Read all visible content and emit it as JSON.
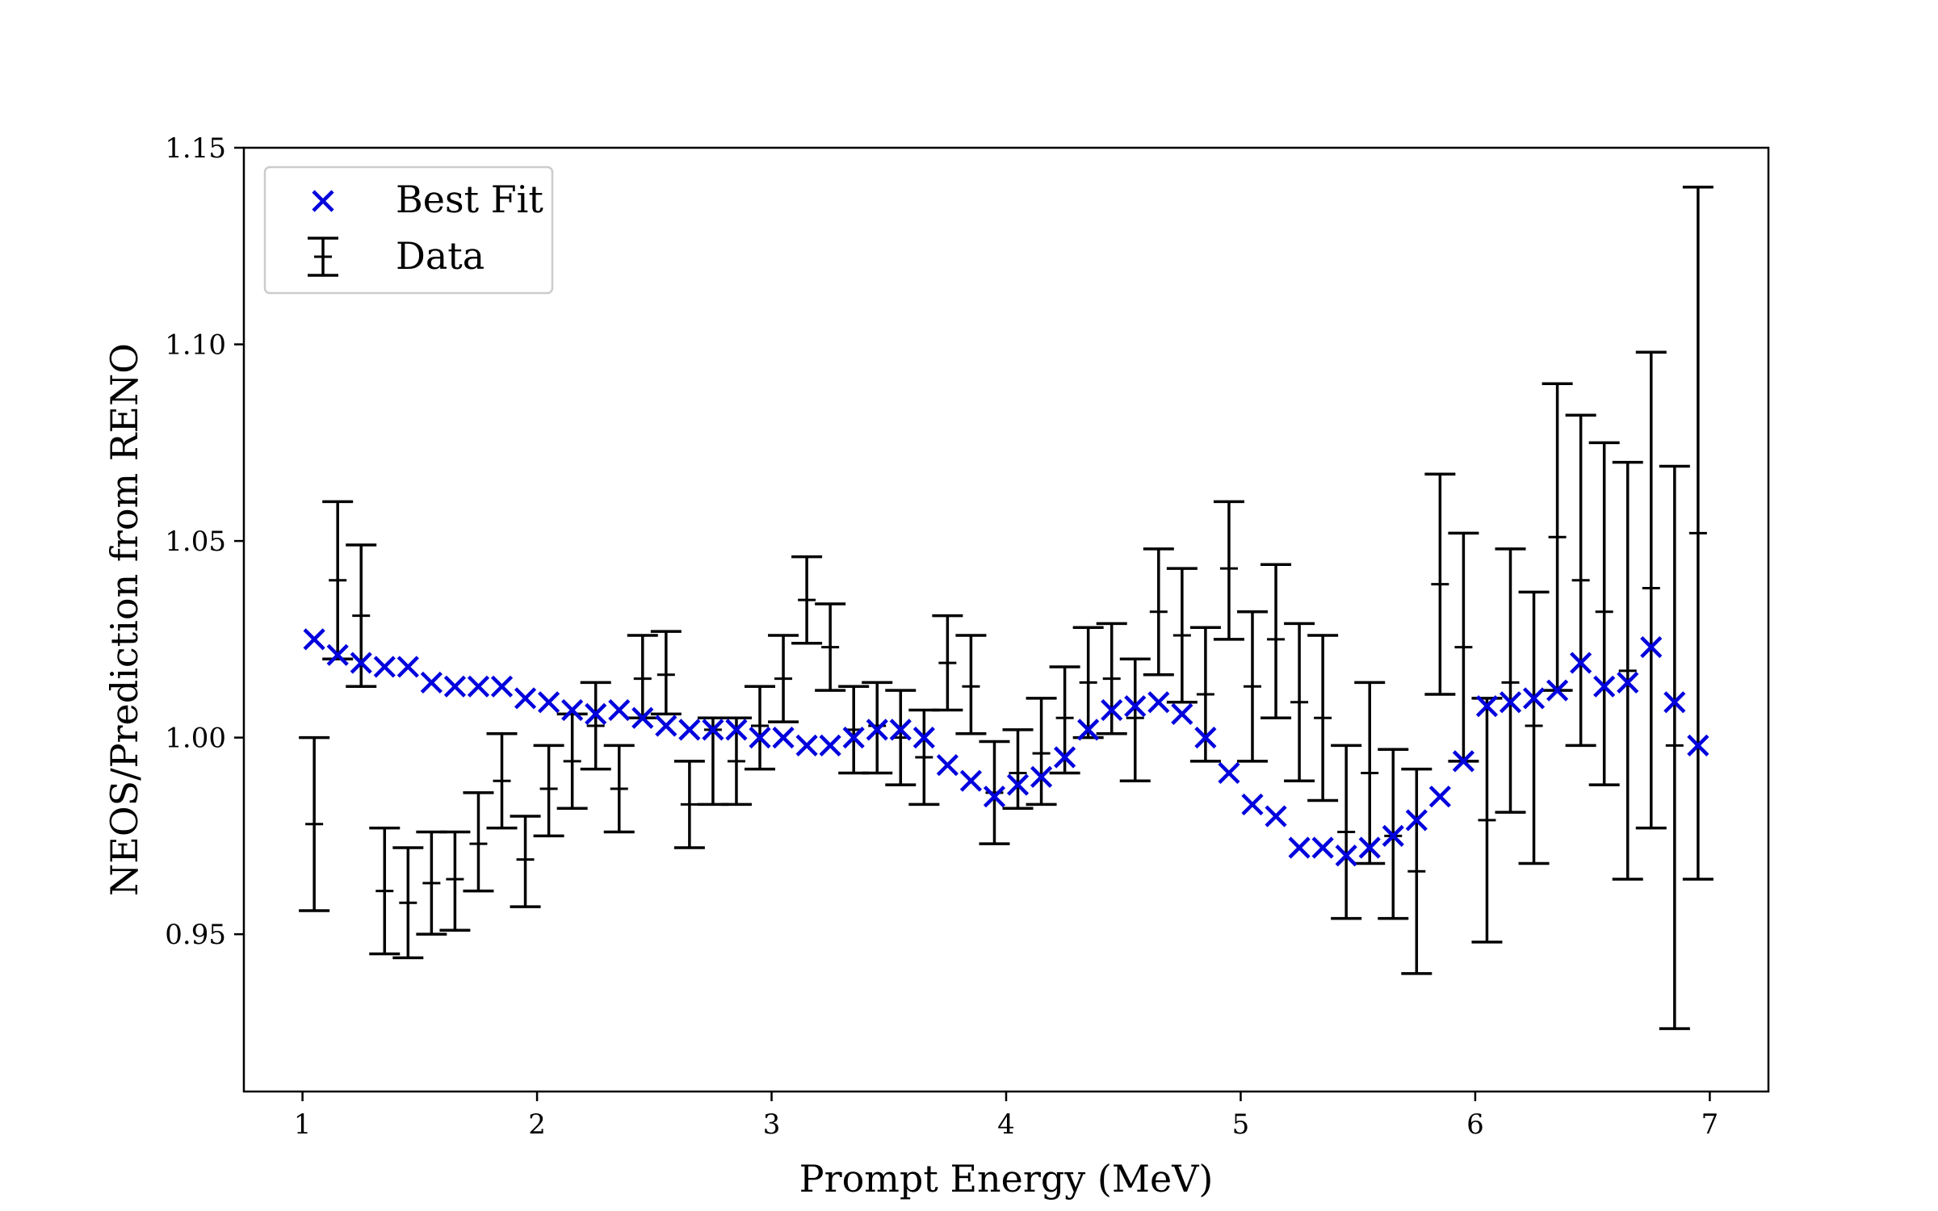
{
  "chart_data": {
    "type": "scatter",
    "title": "",
    "xlabel": "Prompt Energy (MeV)",
    "ylabel": "NEOS/Prediction from RENO",
    "xlim": [
      0.75,
      7.25
    ],
    "ylim": [
      0.91,
      1.15
    ],
    "xticks": [
      1,
      2,
      3,
      4,
      5,
      6,
      7
    ],
    "xtick_labels": [
      "1",
      "2",
      "3",
      "4",
      "5",
      "6",
      "7"
    ],
    "yticks": [
      0.95,
      1.0,
      1.05,
      1.1,
      1.15
    ],
    "ytick_labels": [
      "0.95",
      "1.00",
      "1.05",
      "1.10",
      "1.15"
    ],
    "grid": false,
    "legend_position": "top-left",
    "colors": {
      "best_fit": "#0000dd",
      "data": "#000000"
    },
    "legend": [
      {
        "label": "Best Fit",
        "marker": "x"
      },
      {
        "label": "Data",
        "marker": "errorbar"
      }
    ],
    "series": [
      {
        "name": "Best Fit",
        "marker": "x",
        "x": [
          1.05,
          1.15,
          1.25,
          1.35,
          1.45,
          1.55,
          1.65,
          1.75,
          1.85,
          1.95,
          2.05,
          2.15,
          2.25,
          2.35,
          2.45,
          2.55,
          2.65,
          2.75,
          2.85,
          2.95,
          3.05,
          3.15,
          3.25,
          3.35,
          3.45,
          3.55,
          3.65,
          3.75,
          3.85,
          3.95,
          4.05,
          4.15,
          4.25,
          4.35,
          4.45,
          4.55,
          4.65,
          4.75,
          4.85,
          4.95,
          5.05,
          5.15,
          5.25,
          5.35,
          5.45,
          5.55,
          5.65,
          5.75,
          5.85,
          5.95,
          6.05,
          6.15,
          6.25,
          6.35,
          6.45,
          6.55,
          6.65,
          6.75,
          6.85,
          6.95
        ],
        "y": [
          1.025,
          1.021,
          1.019,
          1.018,
          1.018,
          1.014,
          1.013,
          1.013,
          1.013,
          1.01,
          1.009,
          1.007,
          1.006,
          1.007,
          1.005,
          1.003,
          1.002,
          1.002,
          1.002,
          1.0,
          1.0,
          0.998,
          0.998,
          1.0,
          1.002,
          1.002,
          1.0,
          0.993,
          0.989,
          0.985,
          0.988,
          0.99,
          0.995,
          1.002,
          1.007,
          1.008,
          1.009,
          1.006,
          1.0,
          0.991,
          0.983,
          0.98,
          0.972,
          0.972,
          0.97,
          0.972,
          0.975,
          0.979,
          0.985,
          0.994,
          1.008,
          1.009,
          1.01,
          1.012,
          1.019,
          1.013,
          1.014,
          1.023,
          1.009,
          0.998
        ]
      },
      {
        "name": "Data",
        "marker": "errorbar",
        "x": [
          1.05,
          1.15,
          1.25,
          1.35,
          1.45,
          1.55,
          1.65,
          1.75,
          1.85,
          1.95,
          2.05,
          2.15,
          2.25,
          2.35,
          2.45,
          2.55,
          2.65,
          2.75,
          2.85,
          2.95,
          3.05,
          3.15,
          3.25,
          3.35,
          3.45,
          3.55,
          3.65,
          3.75,
          3.85,
          3.95,
          4.05,
          4.15,
          4.25,
          4.35,
          4.45,
          4.55,
          4.65,
          4.75,
          4.85,
          4.95,
          5.05,
          5.15,
          5.25,
          5.35,
          5.45,
          5.55,
          5.65,
          5.75,
          5.85,
          5.95,
          6.05,
          6.15,
          6.25,
          6.35,
          6.45,
          6.55,
          6.65,
          6.75,
          6.85,
          6.95
        ],
        "y": [
          0.978,
          1.04,
          1.031,
          0.961,
          0.958,
          0.963,
          0.964,
          0.973,
          0.989,
          0.969,
          0.987,
          0.994,
          1.003,
          0.987,
          1.015,
          1.016,
          0.983,
          1.002,
          0.994,
          1.003,
          1.015,
          1.035,
          1.023,
          1.002,
          1.003,
          1.0,
          0.995,
          1.019,
          1.013,
          0.986,
          0.991,
          0.996,
          1.005,
          1.014,
          1.015,
          1.005,
          1.032,
          1.026,
          1.011,
          1.043,
          1.013,
          1.025,
          1.009,
          1.005,
          0.976,
          0.991,
          0.975,
          0.966,
          1.039,
          1.023,
          0.979,
          1.014,
          1.003,
          1.051,
          1.04,
          1.032,
          1.017,
          1.038,
          0.998,
          1.052
        ],
        "yerr_low": [
          0.956,
          1.02,
          1.013,
          0.945,
          0.944,
          0.95,
          0.951,
          0.961,
          0.977,
          0.957,
          0.975,
          0.982,
          0.992,
          0.976,
          1.005,
          1.006,
          0.972,
          0.983,
          0.983,
          0.992,
          1.004,
          1.024,
          1.012,
          0.991,
          0.991,
          0.988,
          0.983,
          1.007,
          1.001,
          0.973,
          0.982,
          0.983,
          0.991,
          1.0,
          1.001,
          0.989,
          1.016,
          1.009,
          0.994,
          1.025,
          0.994,
          1.005,
          0.989,
          0.984,
          0.954,
          0.968,
          0.954,
          0.94,
          1.011,
          0.994,
          0.948,
          0.981,
          0.968,
          1.012,
          0.998,
          0.988,
          0.964,
          0.977,
          0.926,
          0.964
        ],
        "yerr_high": [
          1.0,
          1.06,
          1.049,
          0.977,
          0.972,
          0.976,
          0.976,
          0.986,
          1.001,
          0.98,
          0.998,
          1.006,
          1.014,
          0.998,
          1.026,
          1.027,
          0.994,
          1.005,
          1.005,
          1.013,
          1.026,
          1.046,
          1.034,
          1.013,
          1.014,
          1.012,
          1.007,
          1.031,
          1.026,
          0.999,
          1.002,
          1.01,
          1.018,
          1.028,
          1.029,
          1.02,
          1.048,
          1.043,
          1.028,
          1.06,
          1.032,
          1.044,
          1.029,
          1.026,
          0.998,
          1.014,
          0.997,
          0.992,
          1.067,
          1.052,
          1.01,
          1.048,
          1.037,
          1.09,
          1.082,
          1.075,
          1.07,
          1.098,
          1.069,
          1.14
        ]
      }
    ]
  }
}
